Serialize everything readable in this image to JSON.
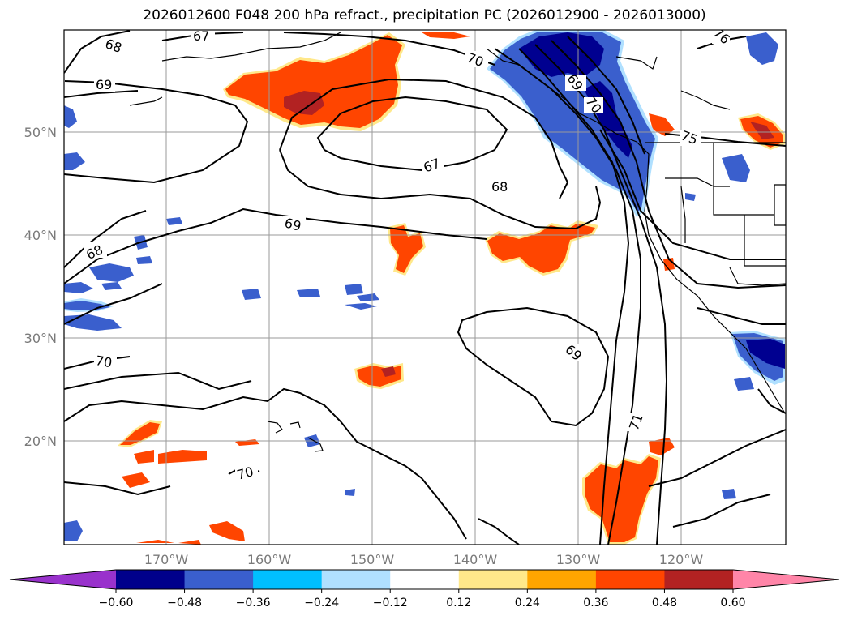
{
  "title": "2026012600 F048 200 hPa refract., precipitation PC (2026012900 - 2026013000)",
  "map": {
    "lat_labels": [
      "50°N",
      "40°N",
      "30°N",
      "20°N"
    ],
    "lon_labels": [
      "170°W",
      "160°W",
      "150°W",
      "140°W",
      "130°W",
      "120°W"
    ],
    "contour_labels": [
      "67",
      "68",
      "69",
      "70",
      "76",
      "70",
      "68",
      "69",
      "69",
      "70",
      "67",
      "68",
      "69",
      "75",
      "71",
      "70"
    ],
    "colors": {
      "strong_positive": "#b22222",
      "positive": "#ff4500",
      "weak_positive": "#ffa500",
      "very_weak_positive": "#ffe88a",
      "very_weak_negative": "#b0e0ff",
      "weak_negative": "#00bfff",
      "negative": "#3a5fcd",
      "strong_negative": "#000090",
      "coast": "#000000"
    }
  },
  "colorbar": {
    "tick_labels": [
      "−0.60",
      "−0.48",
      "−0.36",
      "−0.24",
      "−0.12",
      "0.12",
      "0.24",
      "0.36",
      "0.48",
      "0.60"
    ],
    "bins": [
      {
        "color": "#9932cc"
      },
      {
        "color": "#00008b"
      },
      {
        "color": "#3a5fcd"
      },
      {
        "color": "#00bfff"
      },
      {
        "color": "#b0e0ff"
      },
      {
        "color": "#ffffff"
      },
      {
        "color": "#ffe88a"
      },
      {
        "color": "#ffa500"
      },
      {
        "color": "#ff4500"
      },
      {
        "color": "#b22222"
      },
      {
        "color": "#ff85a8"
      }
    ]
  }
}
